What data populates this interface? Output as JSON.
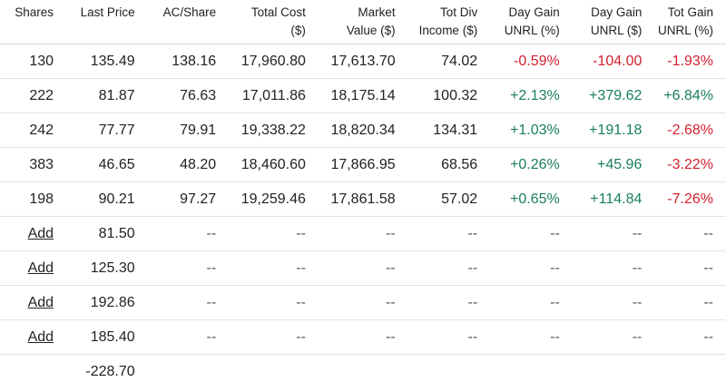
{
  "columns": [
    [
      "Shares"
    ],
    [
      "Last Price"
    ],
    [
      "AC/Share"
    ],
    [
      "Total Cost",
      "($)"
    ],
    [
      "Market",
      "Value ($)"
    ],
    [
      "Tot Div",
      "Income ($)"
    ],
    [
      "Day Gain",
      "UNRL (%)"
    ],
    [
      "Day Gain",
      "UNRL ($)"
    ],
    [
      "Tot Gain",
      "UNRL (%)"
    ]
  ],
  "holdings": [
    {
      "shares": "130",
      "last_price": "135.49",
      "ac_share": "138.16",
      "total_cost": "17,960.80",
      "market_value": "17,613.70",
      "div_income": "74.02",
      "day_gain_pct": "-0.59%",
      "day_gain_usd": "-104.00",
      "tot_gain_pct": "-1.93%",
      "day_sign": "neg",
      "tot_sign": "neg"
    },
    {
      "shares": "222",
      "last_price": "81.87",
      "ac_share": "76.63",
      "total_cost": "17,011.86",
      "market_value": "18,175.14",
      "div_income": "100.32",
      "day_gain_pct": "+2.13%",
      "day_gain_usd": "+379.62",
      "tot_gain_pct": "+6.84%",
      "day_sign": "pos",
      "tot_sign": "pos"
    },
    {
      "shares": "242",
      "last_price": "77.77",
      "ac_share": "79.91",
      "total_cost": "19,338.22",
      "market_value": "18,820.34",
      "div_income": "134.31",
      "day_gain_pct": "+1.03%",
      "day_gain_usd": "+191.18",
      "tot_gain_pct": "-2.68%",
      "day_sign": "pos",
      "tot_sign": "neg"
    },
    {
      "shares": "383",
      "last_price": "46.65",
      "ac_share": "48.20",
      "total_cost": "18,460.60",
      "market_value": "17,866.95",
      "div_income": "68.56",
      "day_gain_pct": "+0.26%",
      "day_gain_usd": "+45.96",
      "tot_gain_pct": "-3.22%",
      "day_sign": "pos",
      "tot_sign": "neg"
    },
    {
      "shares": "198",
      "last_price": "90.21",
      "ac_share": "97.27",
      "total_cost": "19,259.46",
      "market_value": "17,861.58",
      "div_income": "57.02",
      "day_gain_pct": "+0.65%",
      "day_gain_usd": "+114.84",
      "tot_gain_pct": "-7.26%",
      "day_sign": "pos",
      "tot_sign": "neg"
    }
  ],
  "watch_rows": [
    {
      "action": "Add",
      "last_price": "81.50",
      "placeholder": "--"
    },
    {
      "action": "Add",
      "last_price": "125.30",
      "placeholder": "--"
    },
    {
      "action": "Add",
      "last_price": "192.86",
      "placeholder": "--"
    },
    {
      "action": "Add",
      "last_price": "185.40",
      "placeholder": "--"
    }
  ],
  "footer": {
    "last_price": "-228.70"
  },
  "colors": {
    "positive": "#1a7f5a",
    "negative": "#d21f2d"
  }
}
